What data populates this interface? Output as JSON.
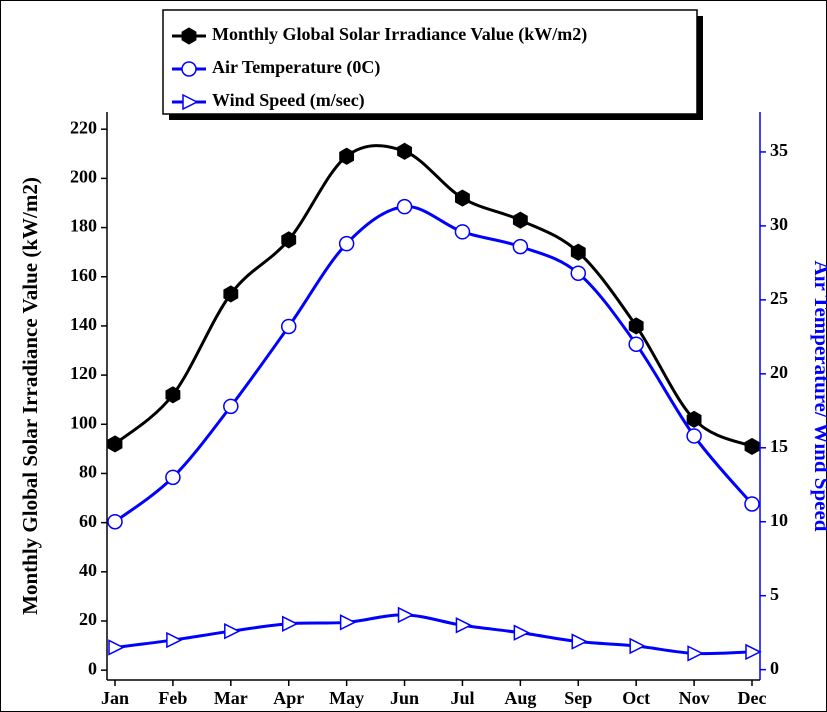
{
  "chart_data": {
    "type": "line",
    "y_label": "Monthly Global Solar Irradiance Value (kW/m2)",
    "y2_label": "Air Temperature/ Wind Speed",
    "categories": [
      "Jan",
      "Feb",
      "Mar",
      "Apr",
      "May",
      "Jun",
      "Jul",
      "Aug",
      "Sep",
      "Oct",
      "Nov",
      "Dec"
    ],
    "series": [
      {
        "name": "Monthly Global Solar Irradiance Value (kW/m2)",
        "color": "#000000",
        "marker": "hexagon",
        "values": [
          92,
          112,
          153,
          175,
          209,
          211,
          192,
          183,
          170,
          140,
          102,
          91
        ]
      },
      {
        "name": "Air Temperature (0C)",
        "color": "#0000ff",
        "marker": "circle",
        "axis": "y2",
        "values": [
          10,
          13,
          17.8,
          23.2,
          28.8,
          31.3,
          29.6,
          28.6,
          26.8,
          22,
          15.8,
          11.2
        ]
      },
      {
        "name": "Wind Speed (m/sec)",
        "color": "#0000ff",
        "marker": "triangle",
        "axis": "y2",
        "values": [
          1.5,
          2,
          2.6,
          3.1,
          3.2,
          3.7,
          3,
          2.5,
          1.9,
          1.6,
          1.1,
          1.2
        ]
      }
    ],
    "ylim": [
      -4,
      227
    ],
    "yticks": [
      0,
      20,
      40,
      60,
      80,
      100,
      120,
      140,
      160,
      180,
      200,
      220
    ],
    "y2lim": [
      -0.7,
      37.7
    ],
    "y2ticks": [
      0,
      5,
      10,
      15,
      20,
      25,
      30,
      35
    ],
    "y2_color": "#0000ff",
    "legend": "top"
  }
}
